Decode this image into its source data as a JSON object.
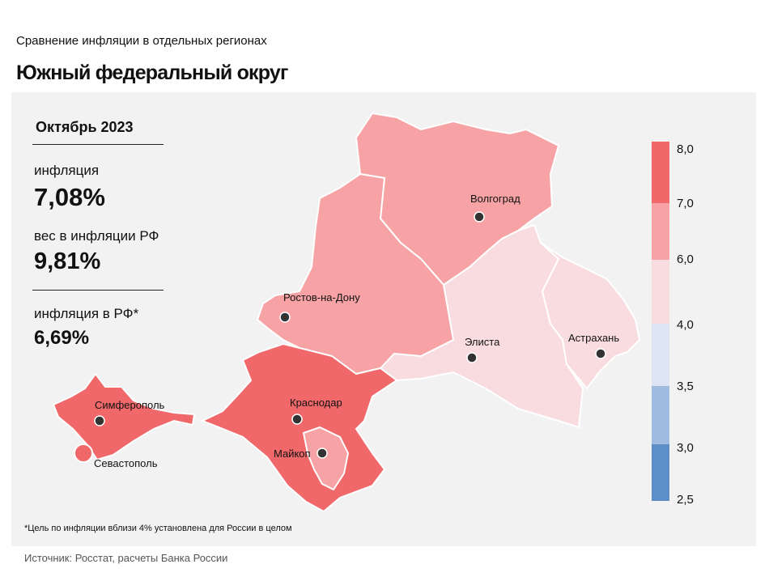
{
  "header": {
    "subtitle": "Сравнение инфляции в отдельных регионах",
    "title": "Южный федеральный округ"
  },
  "info": {
    "period": "Октябрь 2023",
    "inflation_label": "инфляция",
    "inflation_value": "7,08%",
    "weight_label": "вес в инфляции РФ",
    "weight_value": "9,81%",
    "rf_label": "инфляция в РФ*",
    "rf_value": "6,69%"
  },
  "legend": {
    "ticks": [
      "8,0",
      "7,0",
      "6,0",
      "4,0",
      "3,5",
      "3,0",
      "2,5"
    ],
    "colors": [
      "#f0686a",
      "#f7a3a5",
      "#f9dcdf",
      "#dde4f3",
      "#9fbbe0",
      "#5e8ec8"
    ]
  },
  "cities": {
    "volgograd": "Волгоград",
    "rostov": "Ростов-на-Дону",
    "elista": "Элиста",
    "astrakhan": "Астрахань",
    "simferopol": "Симферополь",
    "sevastopol": "Севастополь",
    "krasnodar": "Краснодар",
    "maykop": "Майкоп"
  },
  "regions": [
    {
      "name": "Волгоградская область",
      "bin": "6,0–7,0",
      "color": "#f7a3a5"
    },
    {
      "name": "Ростовская область",
      "bin": "6,0–7,0",
      "color": "#f7a3a5"
    },
    {
      "name": "Республика Калмыкия",
      "bin": "4,0–6,0",
      "color": "#f9dcdf"
    },
    {
      "name": "Астраханская область",
      "bin": "4,0–6,0",
      "color": "#f9dcdf"
    },
    {
      "name": "Краснодарский край",
      "bin": "7,0–8,0",
      "color": "#f0686a"
    },
    {
      "name": "Республика Адыгея",
      "bin": "6,0–7,0",
      "color": "#f7a3a5"
    },
    {
      "name": "Республика Крым",
      "bin": "7,0–8,0",
      "color": "#f0686a"
    },
    {
      "name": "Севастополь",
      "bin": "7,0–8,0",
      "color": "#f0686a"
    }
  ],
  "footnote": "*Цель по инфляции вблизи 4% установлена для России в целом",
  "source": "Источник: Росстат, расчеты Банка России"
}
